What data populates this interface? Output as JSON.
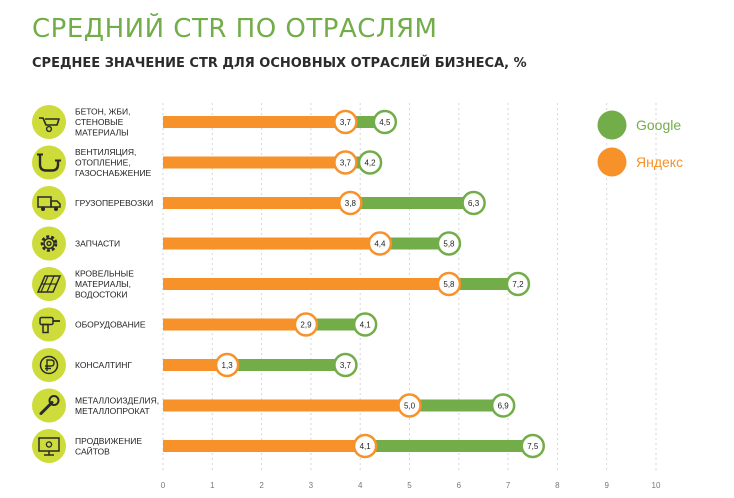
{
  "title": "СРЕДНИЙ CTR ПО ОТРАСЛЯМ",
  "subtitle": "СРЕДНЕЕ ЗНАЧЕНИЕ CTR ДЛЯ ОСНОВНЫХ ОТРАСЛЕЙ БИЗНЕСА, %",
  "colors": {
    "google": "#72ad4a",
    "yandex": "#f7922a",
    "icon_bg": "#cddc3a",
    "title": "#72ad4a"
  },
  "chart_data": {
    "type": "bar",
    "title": "СРЕДНИЙ CTR ПО ОТРАСЛЯМ",
    "subtitle": "СРЕДНЕЕ ЗНАЧЕНИЕ CTR ДЛЯ ОСНОВНЫХ ОТРАСЛЕЙ БИЗНЕСА, %",
    "orientation": "horizontal",
    "xlim": [
      0,
      10
    ],
    "ticks": [
      0,
      1,
      2,
      3,
      4,
      5,
      6,
      7,
      8,
      9,
      10
    ],
    "grid": true,
    "legend_position": "top-right",
    "categories": [
      {
        "lines": [
          "БЕТОН, ЖБИ,",
          "СТЕНОВЫЕ",
          "МАТЕРИАЛЫ"
        ],
        "icon": "wheelbarrow-icon"
      },
      {
        "lines": [
          "ВЕНТИЛЯЦИЯ,",
          "ОТОПЛЕНИЕ,",
          "ГАЗОСНАБЖЕНИЕ"
        ],
        "icon": "pipe-icon"
      },
      {
        "lines": [
          "ГРУЗОПЕРЕВОЗКИ"
        ],
        "icon": "truck-icon"
      },
      {
        "lines": [
          "ЗАПЧАСТИ"
        ],
        "icon": "gear-icon"
      },
      {
        "lines": [
          "КРОВЕЛЬНЫЕ",
          "МАТЕРИАЛЫ,",
          "ВОДОСТОКИ"
        ],
        "icon": "roof-icon"
      },
      {
        "lines": [
          "ОБОРУДОВАНИЕ"
        ],
        "icon": "drill-icon"
      },
      {
        "lines": [
          "КОНСАЛТИНГ"
        ],
        "icon": "ruble-icon"
      },
      {
        "lines": [
          "МЕТАЛЛОИЗДЕЛИЯ,",
          "МЕТАЛЛОПРОКАТ"
        ],
        "icon": "wrench-icon"
      },
      {
        "lines": [
          "ПРОДВИЖЕНИЕ",
          "САЙТОВ"
        ],
        "icon": "monitor-icon"
      }
    ],
    "series": [
      {
        "name": "Google",
        "color": "#72ad4a",
        "values": [
          4.5,
          4.2,
          6.3,
          5.8,
          7.2,
          4.1,
          3.7,
          6.9,
          7.5
        ],
        "labels": [
          "4,5",
          "4,2",
          "6,3",
          "5,8",
          "7,2",
          "4,1",
          "3,7",
          "6,9",
          "7,5"
        ]
      },
      {
        "name": "Яндекс",
        "color": "#f7922a",
        "values": [
          3.7,
          3.7,
          3.8,
          4.4,
          5.8,
          2.9,
          1.3,
          5.0,
          4.1
        ],
        "labels": [
          "3,7",
          "3,7",
          "3,8",
          "4,4",
          "5,8",
          "2,9",
          "1,3",
          "5,0",
          "4,1"
        ]
      }
    ]
  }
}
